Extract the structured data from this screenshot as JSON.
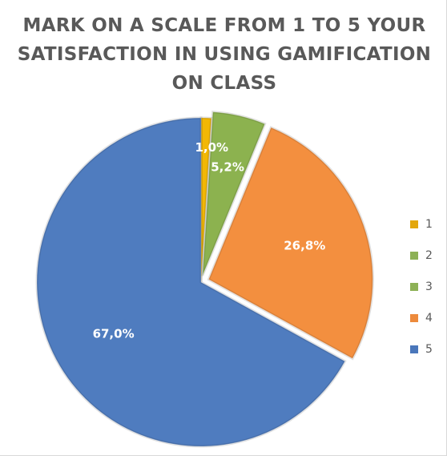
{
  "chart_data": {
    "type": "pie",
    "title": "MARK ON A SCALE FROM 1 TO 5 YOUR SATISFACTION IN USING GAMIFICATION ON CLASS",
    "slices": [
      {
        "label": "1",
        "value": 1.0,
        "display": "1,0%",
        "color": "#f2b705"
      },
      {
        "label": "2",
        "value": 0.0,
        "display": "",
        "color": "#8cb24f"
      },
      {
        "label": "3",
        "value": 5.2,
        "display": "5,2%",
        "color": "#8cb24f"
      },
      {
        "label": "4",
        "value": 26.8,
        "display": "26,8%",
        "color": "#f38f3f"
      },
      {
        "label": "5",
        "value": 67.0,
        "display": "67,0%",
        "color": "#4f7cbf"
      }
    ],
    "legend_position": "right"
  },
  "legend": {
    "items": [
      {
        "label": "1",
        "color": "#e3a70c"
      },
      {
        "label": "2",
        "color": "#8db156"
      },
      {
        "label": "3",
        "color": "#8db156"
      },
      {
        "label": "4",
        "color": "#ed8a3c"
      },
      {
        "label": "5",
        "color": "#4a77bb"
      }
    ]
  }
}
